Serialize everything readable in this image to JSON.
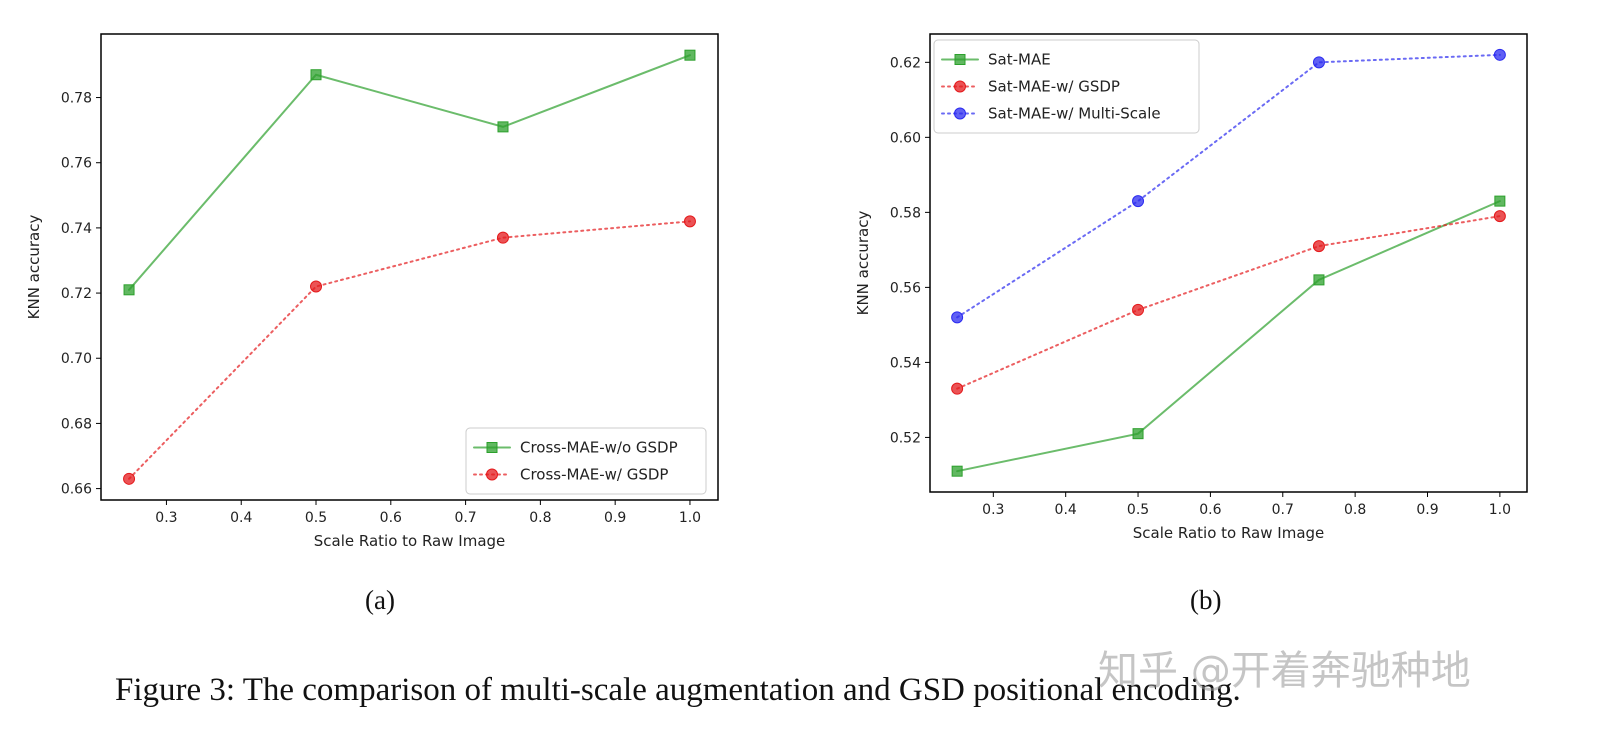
{
  "chart_data": [
    {
      "type": "line",
      "panel_label": "(a)",
      "xlabel": "Scale Ratio to Raw Image",
      "ylabel": "KNN accuracy",
      "xlim": [
        0.2125,
        1.0375
      ],
      "ylim": [
        0.6565,
        0.7995
      ],
      "xticks": [
        "0.3",
        "0.4",
        "0.5",
        "0.6",
        "0.7",
        "0.8",
        "0.9",
        "1.0"
      ],
      "yticks": [
        "0.66",
        "0.68",
        "0.70",
        "0.72",
        "0.74",
        "0.76",
        "0.78"
      ],
      "grid": false,
      "legend_position": "lower-right",
      "x": [
        0.25,
        0.5,
        0.75,
        1.0
      ],
      "series": [
        {
          "name": "Cross-MAE-w/o GSDP",
          "values": [
            0.721,
            0.787,
            0.771,
            0.793
          ],
          "color": "#2ca02c",
          "marker": "square",
          "linestyle": "solid"
        },
        {
          "name": "Cross-MAE-w/ GSDP",
          "values": [
            0.663,
            0.722,
            0.737,
            0.742
          ],
          "color": "#e41a1c",
          "marker": "circle",
          "linestyle": "dotted"
        }
      ]
    },
    {
      "type": "line",
      "panel_label": "(b)",
      "xlabel": "Scale Ratio to Raw Image",
      "ylabel": "KNN accuracy",
      "xlim": [
        0.2125,
        1.0375
      ],
      "ylim": [
        0.50545,
        0.62755
      ],
      "xticks": [
        "0.3",
        "0.4",
        "0.5",
        "0.6",
        "0.7",
        "0.8",
        "0.9",
        "1.0"
      ],
      "yticks": [
        "0.52",
        "0.54",
        "0.56",
        "0.58",
        "0.60",
        "0.62"
      ],
      "grid": false,
      "legend_position": "upper-left",
      "x": [
        0.25,
        0.5,
        0.75,
        1.0
      ],
      "series": [
        {
          "name": "Sat-MAE",
          "values": [
            0.511,
            0.521,
            0.562,
            0.583
          ],
          "color": "#2ca02c",
          "marker": "square",
          "linestyle": "solid"
        },
        {
          "name": "Sat-MAE-w/ GSDP",
          "values": [
            0.533,
            0.554,
            0.571,
            0.579
          ],
          "color": "#e41a1c",
          "marker": "circle",
          "linestyle": "dotted"
        },
        {
          "name": "Sat-MAE-w/ Multi-Scale",
          "values": [
            0.552,
            0.583,
            0.62,
            0.622
          ],
          "color": "#2b2bf0",
          "marker": "circle",
          "linestyle": "dotted"
        }
      ]
    }
  ],
  "figure": {
    "caption": "Figure 3: The comparison of multi-scale augmentation and GSD positional encoding.",
    "subfig_a": "(a)",
    "subfig_b": "(b)",
    "watermark": "知乎 @开着奔驰种地"
  }
}
